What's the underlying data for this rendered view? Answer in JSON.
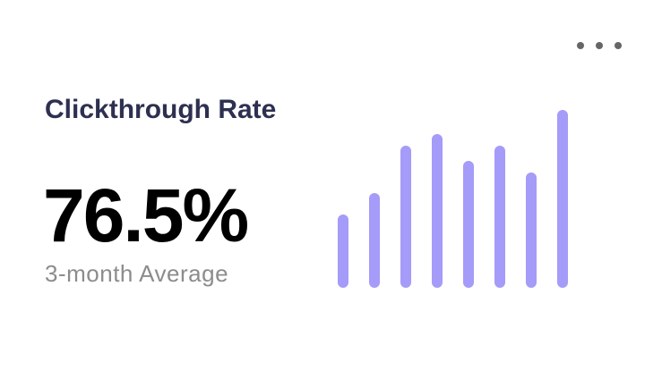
{
  "card": {
    "title": "Clickthrough Rate",
    "value": "76.5%",
    "caption": "3-month Average"
  },
  "chart_data": {
    "type": "bar",
    "values": [
      82,
      106,
      159,
      172,
      142,
      159,
      129,
      199
    ],
    "color": "#a59bf8"
  }
}
